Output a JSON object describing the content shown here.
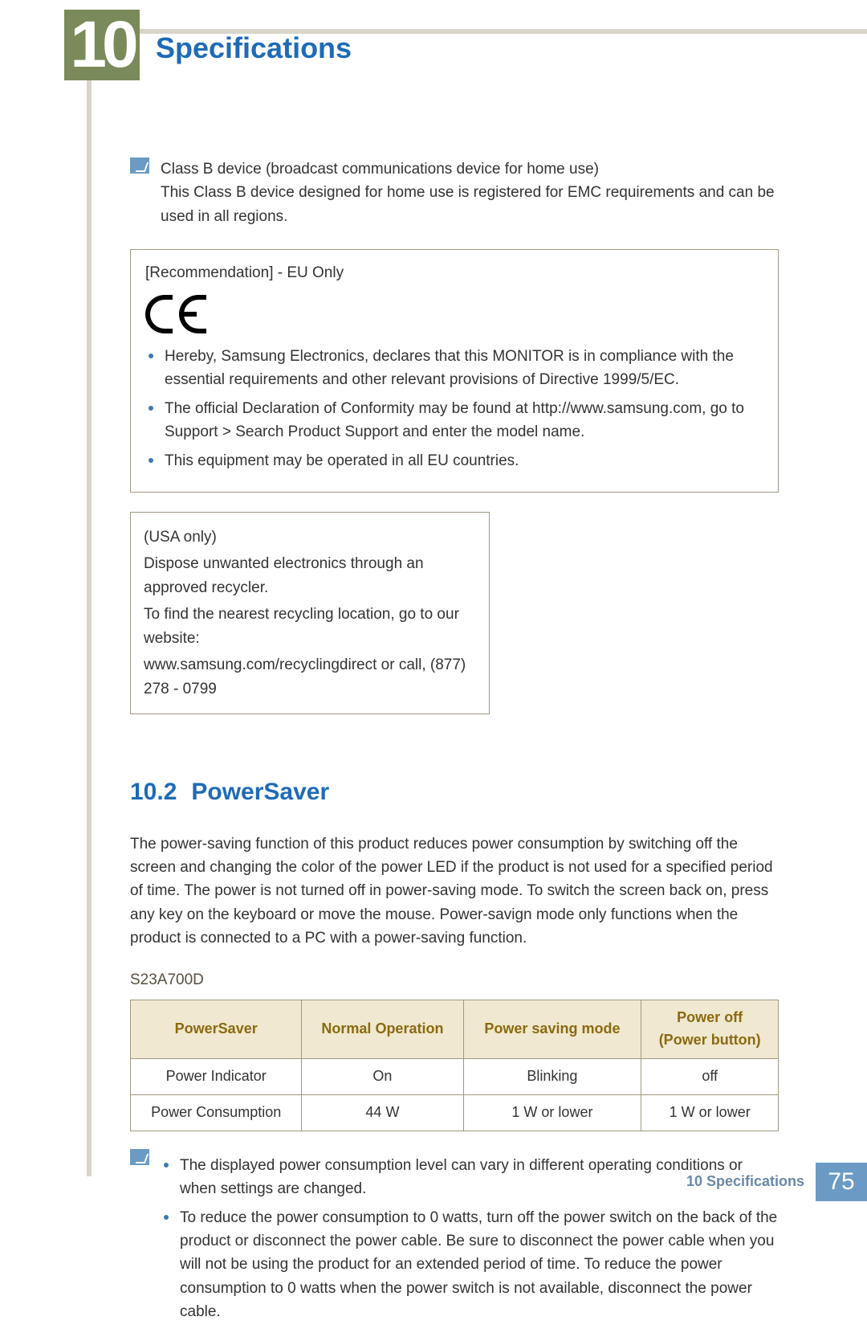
{
  "chapter": {
    "number": "10",
    "title": "Specifications"
  },
  "class_b": {
    "line1": "Class B device (broadcast communications device for home use)",
    "line2": "This Class B device designed for home use is registered for EMC requirements and can be used in all regions."
  },
  "recommendation": {
    "heading": "[Recommendation] - EU Only",
    "bullets": [
      "Hereby, Samsung Electronics, declares that this MONITOR is in compliance with the essential requirements and other relevant provisions of Directive 1999/5/EC.",
      "The official Declaration of Conformity may be found at http://www.samsung.com, go to Support > Search Product Support and enter the model name.",
      "This equipment may be operated in all EU countries."
    ]
  },
  "usa": {
    "line1": "(USA only)",
    "line2": "Dispose unwanted electronics through an approved recycler.",
    "line3": "To find the nearest recycling location, go to our website:",
    "line4": "www.samsung.com/recyclingdirect or call, (877) 278 - 0799"
  },
  "section": {
    "number": "10.2",
    "title": "PowerSaver"
  },
  "powersaver_intro": "The power-saving function of this product reduces power consumption by switching off the screen and changing the color of the power LED if the product is not used for a specified period of time. The power is not turned off in power-saving mode. To switch the screen back on, press any key on the keyboard or move the mouse. Power-savign mode only functions when the product is connected to a PC with a power-saving function.",
  "model": "S23A700D",
  "table": {
    "headers": [
      "PowerSaver",
      "Normal Operation",
      "Power saving mode",
      "Power off\n(Power button)"
    ],
    "rows": [
      [
        "Power Indicator",
        "On",
        "Blinking",
        "off"
      ],
      [
        "Power Consumption",
        "44 W",
        "1 W or lower",
        "1 W or lower"
      ]
    ],
    "header_bg": "#f0e8d0",
    "header_color": "#8a6a10",
    "border_color": "#a09880"
  },
  "notes": [
    "The displayed power consumption level can vary in different operating conditions or when settings are changed.",
    "To reduce the power consumption to 0 watts, turn off the power switch on the back of the product or disconnect the power cable. Be sure to disconnect the power cable when you will not be using the product for an extended period of time. To reduce the power consumption to 0 watts when the power switch is not available, disconnect the power cable."
  ],
  "footer": {
    "label": "10 Specifications",
    "page": "75"
  },
  "colors": {
    "accent_blue": "#1e6bb8",
    "olive": "#7a8a5a",
    "bar": "#d8d4ca",
    "footer_block": "#6b9bc4"
  }
}
